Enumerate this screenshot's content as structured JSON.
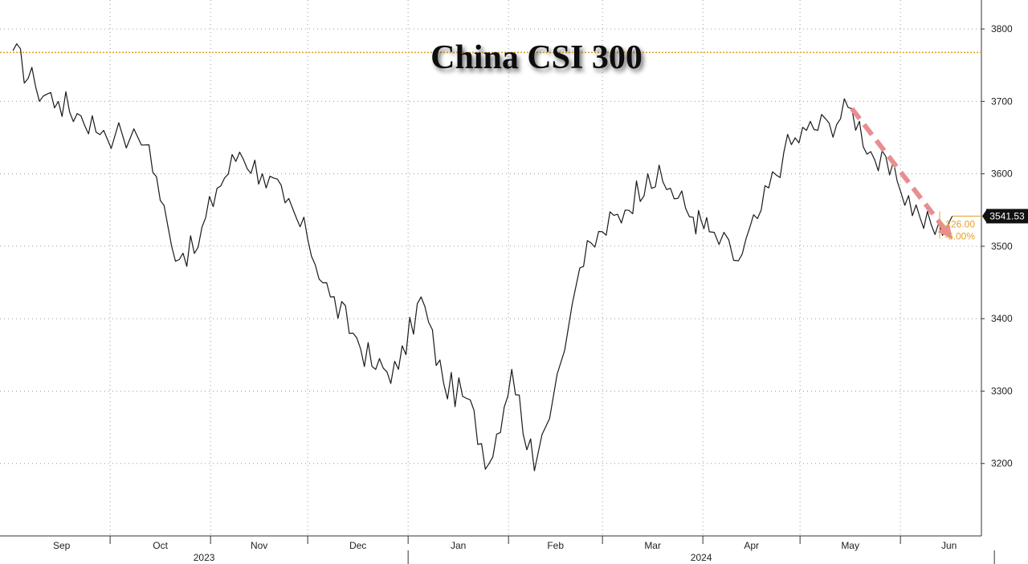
{
  "chart_data": {
    "type": "line",
    "title": "China CSI 300",
    "xlabel": "",
    "ylabel": "",
    "ylim": [
      3100,
      3840
    ],
    "y_ticks": [
      3200,
      3300,
      3400,
      3500,
      3600,
      3700,
      3800
    ],
    "grid": true,
    "x_month_labels": [
      "Sep",
      "Oct",
      "Nov",
      "Dec",
      "Jan",
      "Feb",
      "Mar",
      "Apr",
      "May",
      "Jun"
    ],
    "x_year_labels": [
      "2023",
      "2024"
    ],
    "x": [
      "2023-09-01",
      "2023-09-08",
      "2023-09-15",
      "2023-09-22",
      "2023-09-29",
      "2023-10-13",
      "2023-10-20",
      "2023-10-27",
      "2023-11-03",
      "2023-11-10",
      "2023-11-17",
      "2023-11-24",
      "2023-12-01",
      "2023-12-08",
      "2023-12-15",
      "2023-12-22",
      "2023-12-29",
      "2024-01-05",
      "2024-01-12",
      "2024-01-19",
      "2024-01-26",
      "2024-02-02",
      "2024-02-09",
      "2024-02-23",
      "2024-03-01",
      "2024-03-08",
      "2024-03-15",
      "2024-03-22",
      "2024-03-29",
      "2024-04-03",
      "2024-04-12",
      "2024-04-19",
      "2024-04-26",
      "2024-05-03",
      "2024-05-10",
      "2024-05-17",
      "2024-05-24",
      "2024-05-31",
      "2024-06-07",
      "2024-06-14",
      "2024-06-17"
    ],
    "series": [
      {
        "values": [
          3770,
          3720,
          3700,
          3680,
          3660,
          3640,
          3500,
          3490,
          3580,
          3630,
          3600,
          3560,
          3510,
          3430,
          3380,
          3330,
          3330,
          3430,
          3310,
          3290,
          3200,
          3330,
          3190,
          3470,
          3520,
          3550,
          3600,
          3580,
          3540,
          3520,
          3480,
          3550,
          3630,
          3660,
          3670,
          3690,
          3620,
          3590,
          3540,
          3515,
          3541.53
        ]
      }
    ],
    "reference_line": {
      "value": 3767.53
    },
    "last_value_label": "3541.53",
    "change_labels": [
      "-226.00",
      "-6.00%"
    ],
    "trend_arrow": {
      "from": [
        "2024-05-17",
        3690
      ],
      "to": [
        "2024-06-17",
        3510
      ]
    },
    "colors": {
      "line": "#1a1a1a",
      "grid": "#9a9a9a",
      "reference_line": "#e0a020",
      "arrow": "#e88e91",
      "last_label_bg": "#111111",
      "annotation": "#e3a22a"
    }
  }
}
